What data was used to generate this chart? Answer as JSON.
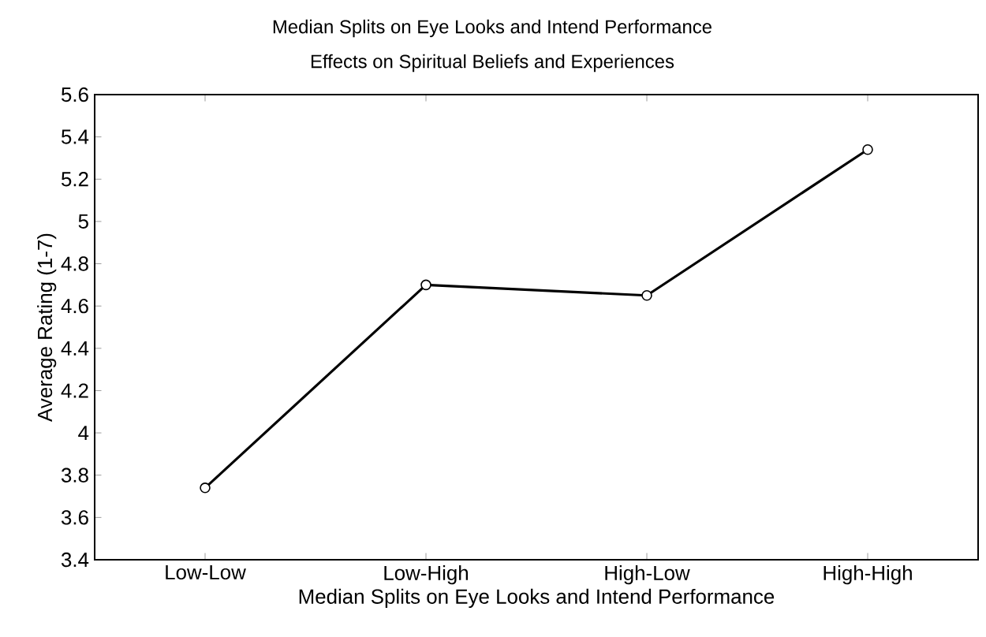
{
  "chart_data": {
    "type": "line",
    "title": "Median Splits on Eye Looks and Intend Performance",
    "subtitle": "Effects on Spiritual Beliefs and Experiences",
    "xlabel": "Median Splits on Eye Looks and Intend Performance",
    "ylabel": "Average Rating (1-7)",
    "categories": [
      "Low-Low",
      "Low-High",
      "High-Low",
      "High-High"
    ],
    "series": [
      {
        "color": "#000000",
        "values": [
          3.74,
          4.7,
          4.65,
          5.34
        ]
      }
    ],
    "ylim": [
      3.4,
      5.6
    ],
    "yticks": [
      3.4,
      3.6,
      3.8,
      4,
      4.2,
      4.4,
      4.6,
      4.8,
      5,
      5.2,
      5.4,
      5.6
    ],
    "marker": "circle",
    "line_style": "solid"
  }
}
